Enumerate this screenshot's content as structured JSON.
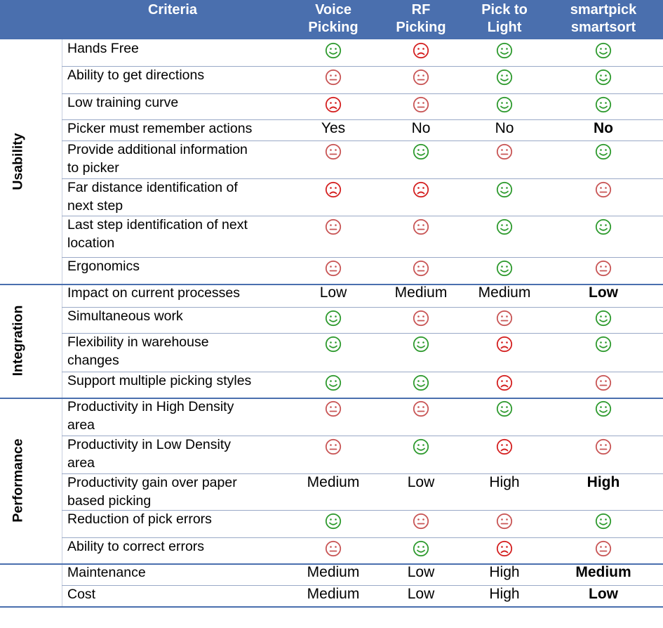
{
  "header": {
    "criteria": "Criteria",
    "col1": "Voice\nPicking",
    "col2": "RF\nPicking",
    "col3": "Pick to\nLight",
    "col4": "smartpick\nsmartsort"
  },
  "categories": [
    "Usability",
    "Integration",
    "Performance"
  ],
  "face_colors": {
    "happy": "#2e9a2e",
    "neutral": "#c85555",
    "sad": "#d42020"
  },
  "rows": [
    {
      "criteria": "Hands Free",
      "cells": [
        {
          "t": "face",
          "v": "happy"
        },
        {
          "t": "face",
          "v": "sad"
        },
        {
          "t": "face",
          "v": "happy"
        },
        {
          "t": "face",
          "v": "happy"
        }
      ]
    },
    {
      "criteria": "Ability to get directions",
      "cells": [
        {
          "t": "face",
          "v": "neutral"
        },
        {
          "t": "face",
          "v": "neutral"
        },
        {
          "t": "face",
          "v": "happy"
        },
        {
          "t": "face",
          "v": "happy"
        }
      ]
    },
    {
      "criteria": "Low training curve",
      "cells": [
        {
          "t": "face",
          "v": "sad"
        },
        {
          "t": "face",
          "v": "neutral"
        },
        {
          "t": "face",
          "v": "happy"
        },
        {
          "t": "face",
          "v": "happy"
        }
      ]
    },
    {
      "criteria": "Picker must remember actions",
      "cells": [
        {
          "t": "text",
          "v": "Yes"
        },
        {
          "t": "text",
          "v": "No"
        },
        {
          "t": "text",
          "v": "No"
        },
        {
          "t": "bold",
          "v": "No"
        }
      ]
    },
    {
      "criteria": "Provide additional information\nto picker",
      "cells": [
        {
          "t": "face",
          "v": "neutral"
        },
        {
          "t": "face",
          "v": "happy"
        },
        {
          "t": "face",
          "v": "neutral"
        },
        {
          "t": "face",
          "v": "happy"
        }
      ]
    },
    {
      "criteria": "Far distance identification of\nnext step",
      "cells": [
        {
          "t": "face",
          "v": "sad"
        },
        {
          "t": "face",
          "v": "sad"
        },
        {
          "t": "face",
          "v": "happy"
        },
        {
          "t": "face",
          "v": "neutral"
        }
      ]
    },
    {
      "criteria": "Last step identification of next\nlocation",
      "cells": [
        {
          "t": "face",
          "v": "neutral"
        },
        {
          "t": "face",
          "v": "neutral"
        },
        {
          "t": "face",
          "v": "happy"
        },
        {
          "t": "face",
          "v": "happy"
        }
      ]
    },
    {
      "criteria": "Ergonomics",
      "cells": [
        {
          "t": "face",
          "v": "neutral"
        },
        {
          "t": "face",
          "v": "neutral"
        },
        {
          "t": "face",
          "v": "happy"
        },
        {
          "t": "face",
          "v": "neutral"
        }
      ]
    },
    {
      "criteria": "Impact on current processes",
      "cells": [
        {
          "t": "text",
          "v": "Low"
        },
        {
          "t": "text",
          "v": "Medium"
        },
        {
          "t": "text",
          "v": "Medium"
        },
        {
          "t": "bold",
          "v": "Low"
        }
      ]
    },
    {
      "criteria": "Simultaneous work",
      "cells": [
        {
          "t": "face",
          "v": "happy"
        },
        {
          "t": "face",
          "v": "neutral"
        },
        {
          "t": "face",
          "v": "neutral"
        },
        {
          "t": "face",
          "v": "happy"
        }
      ]
    },
    {
      "criteria": "Flexibility in warehouse\nchanges",
      "cells": [
        {
          "t": "face",
          "v": "happy"
        },
        {
          "t": "face",
          "v": "happy"
        },
        {
          "t": "face",
          "v": "sad"
        },
        {
          "t": "face",
          "v": "happy"
        }
      ]
    },
    {
      "criteria": "Support multiple picking styles",
      "cells": [
        {
          "t": "face",
          "v": "happy"
        },
        {
          "t": "face",
          "v": "happy"
        },
        {
          "t": "face",
          "v": "sad"
        },
        {
          "t": "face",
          "v": "neutral"
        }
      ]
    },
    {
      "criteria": "Productivity in High Density\narea",
      "cells": [
        {
          "t": "face",
          "v": "neutral"
        },
        {
          "t": "face",
          "v": "neutral"
        },
        {
          "t": "face",
          "v": "happy"
        },
        {
          "t": "face",
          "v": "happy"
        }
      ]
    },
    {
      "criteria": "Productivity in Low Density\narea",
      "cells": [
        {
          "t": "face",
          "v": "neutral"
        },
        {
          "t": "face",
          "v": "happy"
        },
        {
          "t": "face",
          "v": "sad"
        },
        {
          "t": "face",
          "v": "neutral"
        }
      ]
    },
    {
      "criteria": "Productivity gain over paper\nbased picking",
      "cells": [
        {
          "t": "text",
          "v": "Medium"
        },
        {
          "t": "text",
          "v": "Low"
        },
        {
          "t": "text",
          "v": "High"
        },
        {
          "t": "bold",
          "v": "High"
        }
      ]
    },
    {
      "criteria": "Reduction of pick errors",
      "cells": [
        {
          "t": "face",
          "v": "happy"
        },
        {
          "t": "face",
          "v": "neutral"
        },
        {
          "t": "face",
          "v": "neutral"
        },
        {
          "t": "face",
          "v": "happy"
        }
      ]
    },
    {
      "criteria": "Ability to correct errors",
      "cells": [
        {
          "t": "face",
          "v": "neutral"
        },
        {
          "t": "face",
          "v": "happy"
        },
        {
          "t": "face",
          "v": "sad"
        },
        {
          "t": "face",
          "v": "neutral"
        }
      ]
    },
    {
      "criteria": "Maintenance",
      "cells": [
        {
          "t": "text",
          "v": "Medium"
        },
        {
          "t": "text",
          "v": "Low"
        },
        {
          "t": "text",
          "v": "High"
        },
        {
          "t": "bold",
          "v": "Medium"
        }
      ]
    },
    {
      "criteria": "Cost",
      "cells": [
        {
          "t": "text",
          "v": "Medium"
        },
        {
          "t": "text",
          "v": "Low"
        },
        {
          "t": "text",
          "v": "High"
        },
        {
          "t": "bold",
          "v": "Low"
        }
      ]
    }
  ]
}
